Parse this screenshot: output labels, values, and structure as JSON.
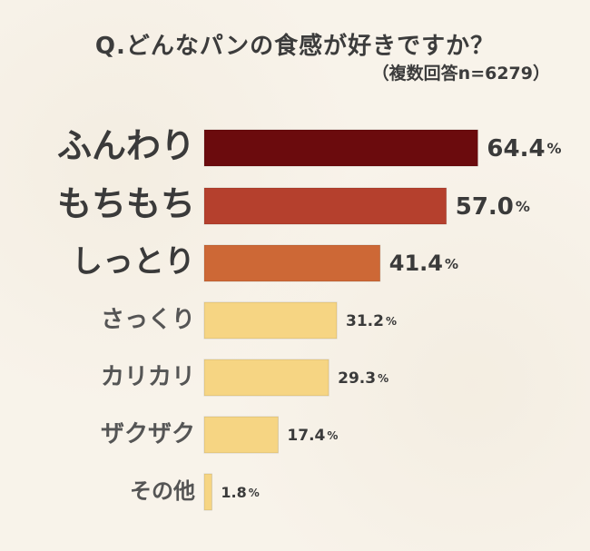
{
  "title": "Q.どんなパンの食感が好きですか？",
  "subtitle": "（複数回答n=6279）",
  "colors": {
    "background": "#f8f3ea",
    "rank1": "#6b0b0d",
    "rank2": "#b5402d",
    "rank3": "#cd6836",
    "others": "#f6d583",
    "text": "#3f3f3f"
  },
  "chart_data": {
    "type": "bar",
    "orientation": "horizontal",
    "title": "Q.どんなパンの食感が好きですか？",
    "subtitle": "（複数回答n=6279）",
    "categories": [
      "ふんわり",
      "もちもち",
      "しっとり",
      "さっくり",
      "カリカリ",
      "ザクザク",
      "その他"
    ],
    "values": [
      64.4,
      57.0,
      41.4,
      31.2,
      29.3,
      17.4,
      1.8
    ],
    "value_labels": [
      "64.4",
      "57.0",
      "41.4",
      "31.2",
      "29.3",
      "17.4",
      "1.8"
    ],
    "unit": "%",
    "xlim": [
      0,
      100
    ],
    "grid": false,
    "legend": "none"
  }
}
